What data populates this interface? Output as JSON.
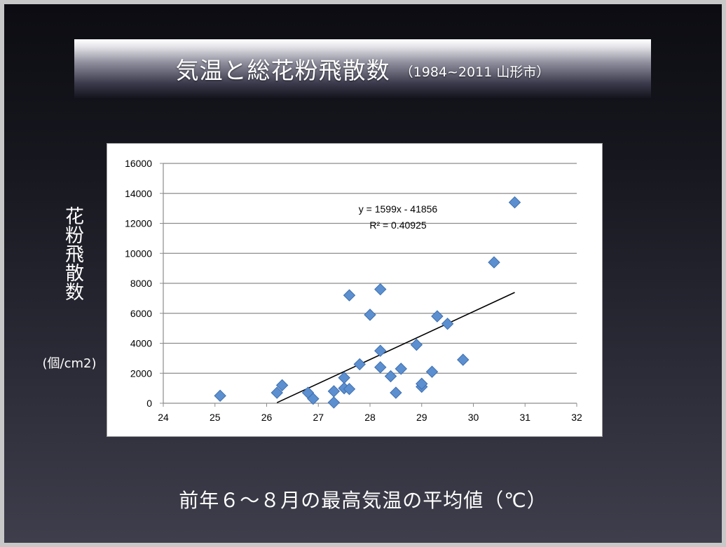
{
  "slide": {
    "title": "気温と総花粉飛散数",
    "subtitle": "（1984~2011 山形市）",
    "y_label": "花粉飛散数",
    "y_unit": "(個/cm2)",
    "x_label": "前年６〜８月の最高気温の平均値（℃）"
  },
  "chart_data": {
    "type": "scatter",
    "xlim": [
      24,
      32
    ],
    "ylim": [
      0,
      16000
    ],
    "x_ticks": [
      "24",
      "25",
      "26",
      "27",
      "28",
      "29",
      "30",
      "31",
      "32"
    ],
    "y_ticks": [
      "0",
      "2000",
      "4000",
      "6000",
      "8000",
      "10000",
      "12000",
      "14000",
      "16000"
    ],
    "grid": true,
    "marker_color": "#5b8fd0",
    "trendline_color": "#000000",
    "trendline": {
      "equation": "y = 1599x - 41856",
      "r_squared": "R² = 0.40925",
      "slope": 1599,
      "intercept": -41856,
      "x_range": [
        26.2,
        30.8
      ]
    },
    "points": [
      {
        "x": 25.1,
        "y": 500
      },
      {
        "x": 26.2,
        "y": 700
      },
      {
        "x": 26.3,
        "y": 1200
      },
      {
        "x": 26.8,
        "y": 700
      },
      {
        "x": 26.9,
        "y": 300
      },
      {
        "x": 27.3,
        "y": 50
      },
      {
        "x": 27.3,
        "y": 800
      },
      {
        "x": 27.5,
        "y": 1000
      },
      {
        "x": 27.5,
        "y": 1700
      },
      {
        "x": 27.6,
        "y": 950
      },
      {
        "x": 27.6,
        "y": 7200
      },
      {
        "x": 27.8,
        "y": 2600
      },
      {
        "x": 28.0,
        "y": 5900
      },
      {
        "x": 28.2,
        "y": 3500
      },
      {
        "x": 28.2,
        "y": 2400
      },
      {
        "x": 28.2,
        "y": 7600
      },
      {
        "x": 28.4,
        "y": 1800
      },
      {
        "x": 28.5,
        "y": 700
      },
      {
        "x": 28.6,
        "y": 2300
      },
      {
        "x": 28.9,
        "y": 3900
      },
      {
        "x": 29.0,
        "y": 1100
      },
      {
        "x": 29.0,
        "y": 1300
      },
      {
        "x": 29.2,
        "y": 2100
      },
      {
        "x": 29.3,
        "y": 5800
      },
      {
        "x": 29.5,
        "y": 5300
      },
      {
        "x": 29.8,
        "y": 2900
      },
      {
        "x": 30.4,
        "y": 9400
      },
      {
        "x": 30.8,
        "y": 13400
      }
    ]
  }
}
